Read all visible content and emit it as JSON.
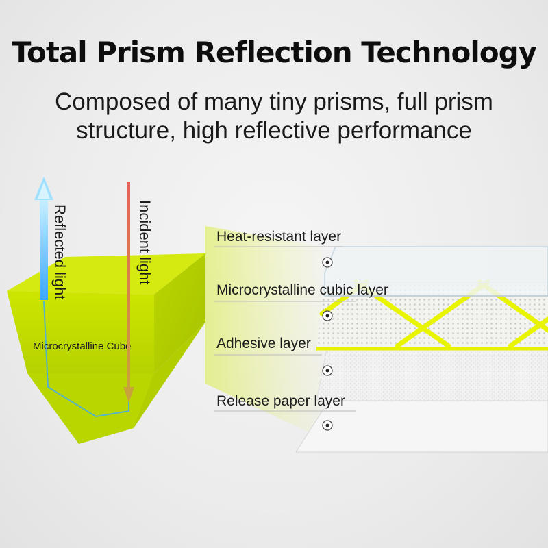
{
  "header": {
    "title": "Total Prism Reflection Technology",
    "subtitle": "Composed of many tiny prisms, full prism structure, high reflective performance"
  },
  "prism": {
    "reflected_label": "Reflected light",
    "incident_label": "Incident light",
    "cube_label": "Microcrystalline Cube"
  },
  "layers": [
    {
      "label": "Heat-resistant layer"
    },
    {
      "label": "Microcrystalline cubic layer"
    },
    {
      "label": "Adhesive layer"
    },
    {
      "label": "Release paper layer"
    }
  ],
  "colors": {
    "prism": "#c8e000",
    "reflective_strip": "#e8f400",
    "reflected_arrow": "#4ab8ff",
    "incident_arrow": "#e86a5a"
  }
}
